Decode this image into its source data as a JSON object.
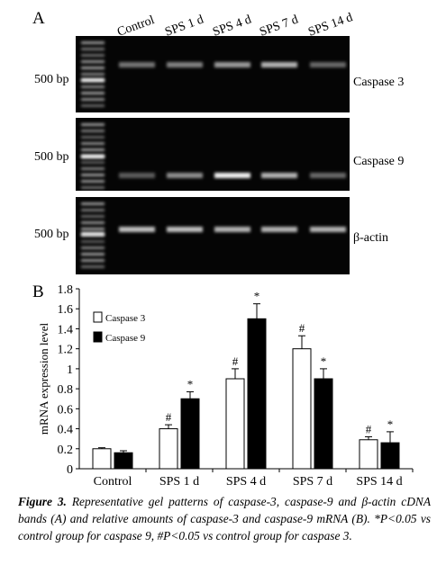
{
  "panel_a": {
    "label": "A",
    "lanes": [
      "Control",
      "SPS 1 d",
      "SPS 4 d",
      "SPS 7 d",
      "SPS 14 d"
    ],
    "marker": [
      "500 bp",
      "500 bp",
      "500 bp"
    ],
    "genes": [
      "Caspase 3",
      "Caspase 9",
      "β-actin"
    ]
  },
  "chart_data": {
    "type": "bar",
    "panel_label": "B",
    "y_label": "mRNA expression level",
    "categories": [
      "Control",
      "SPS 1 d",
      "SPS 4 d",
      "SPS 7 d",
      "SPS 14 d"
    ],
    "series": [
      {
        "name": "Caspase 3",
        "color": "#ffffff",
        "values": [
          0.2,
          0.4,
          0.9,
          1.2,
          0.29
        ],
        "errors": [
          0.01,
          0.04,
          0.1,
          0.13,
          0.03
        ],
        "annotations": [
          null,
          "#",
          "#",
          "#",
          "#"
        ]
      },
      {
        "name": "Caspase 9",
        "color": "#000000",
        "values": [
          0.16,
          0.7,
          1.5,
          0.9,
          0.26
        ],
        "errors": [
          0.02,
          0.07,
          0.15,
          0.1,
          0.11
        ],
        "annotations": [
          null,
          "*",
          "*",
          "*",
          "*"
        ]
      }
    ],
    "ylim": [
      0,
      1.8
    ],
    "yticks": [
      0,
      0.2,
      0.4,
      0.6,
      0.8,
      1,
      1.2,
      1.4,
      1.6,
      1.8
    ]
  },
  "caption": {
    "label": "Figure 3.",
    "text": "Representative gel patterns of caspase-3, caspase-9 and β-actin cDNA bands (A) and relative amounts of caspase-3 and caspase-9 mRNA (B). *P<0.05 vs control group for caspase 9, #P<0.05 vs control group for caspase 3."
  }
}
